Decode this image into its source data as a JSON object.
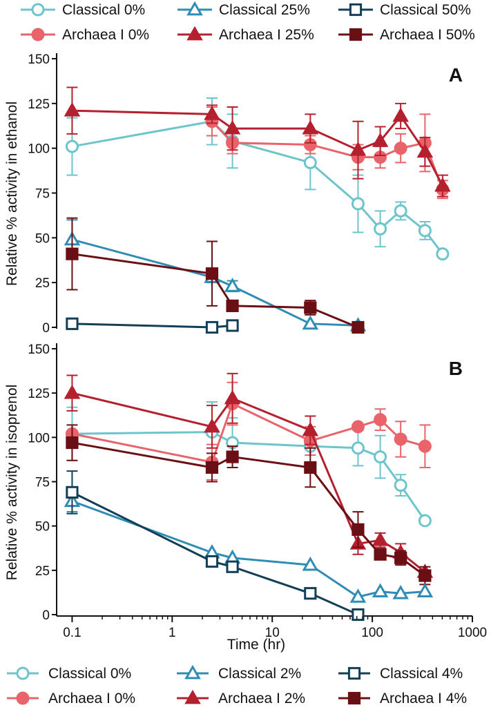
{
  "colors": {
    "classical_0": "#6cc5cb",
    "classical_mid": "#2f8db5",
    "classical_hi": "#123f57",
    "archaea_0": "#e8646a",
    "archaea_mid": "#b5202e",
    "archaea_hi": "#6a0f14",
    "axis": "#111111"
  },
  "x_axis": {
    "title": "Time (hr)",
    "ticks": [
      0.1,
      1,
      10,
      100,
      1000
    ],
    "tick_labels": [
      "0.1",
      "1",
      "10",
      "100",
      "1000"
    ]
  },
  "top_legend": [
    {
      "label": "Classical 0%",
      "marker": "circle",
      "filled": false,
      "color_key": "classical_0"
    },
    {
      "label": "Classical 25%",
      "marker": "triangle",
      "filled": false,
      "color_key": "classical_mid"
    },
    {
      "label": "Classical 50%",
      "marker": "square",
      "filled": false,
      "color_key": "classical_hi"
    },
    {
      "label": "Archaea I 0%",
      "marker": "circle",
      "filled": true,
      "color_key": "archaea_0"
    },
    {
      "label": "Archaea I 25%",
      "marker": "triangle",
      "filled": true,
      "color_key": "archaea_mid"
    },
    {
      "label": "Archaea I 50%",
      "marker": "square",
      "filled": true,
      "color_key": "archaea_hi"
    }
  ],
  "bottom_legend": [
    {
      "label": "Classical 0%",
      "marker": "circle",
      "filled": false,
      "color_key": "classical_0"
    },
    {
      "label": "Classical 2%",
      "marker": "triangle",
      "filled": false,
      "color_key": "classical_mid"
    },
    {
      "label": "Classical 4%",
      "marker": "square",
      "filled": false,
      "color_key": "classical_hi"
    },
    {
      "label": "Archaea I 0%",
      "marker": "circle",
      "filled": true,
      "color_key": "archaea_0"
    },
    {
      "label": "Archaea I 2%",
      "marker": "triangle",
      "filled": true,
      "color_key": "archaea_mid"
    },
    {
      "label": "Archaea I 4%",
      "marker": "square",
      "filled": true,
      "color_key": "archaea_hi"
    }
  ],
  "chart_data": [
    {
      "type": "line",
      "panel": "A",
      "title": "",
      "xlabel": "",
      "ylabel": "Relative % activity in ethanol",
      "xscale": "log",
      "xlim": [
        0.07,
        1000
      ],
      "ylim": [
        0,
        150
      ],
      "yticks": [
        0,
        25,
        50,
        75,
        100,
        125,
        150
      ],
      "series": [
        {
          "name": "Classical 0%",
          "marker": "circle",
          "filled": false,
          "color_key": "classical_0",
          "x": [
            0.1,
            2.5,
            4,
            24,
            72,
            120,
            192,
            336,
            504
          ],
          "y": [
            101,
            115,
            104,
            92,
            69,
            55,
            65,
            54,
            41
          ],
          "err": [
            16,
            13,
            15,
            15,
            16,
            10,
            5,
            5,
            0
          ]
        },
        {
          "name": "Archaea I 0%",
          "marker": "circle",
          "filled": true,
          "color_key": "archaea_0",
          "x": [
            2.5,
            4,
            24,
            72,
            120,
            192,
            336,
            504
          ],
          "y": [
            115,
            103,
            102,
            95,
            95,
            100,
            103,
            77
          ],
          "err": [
            8,
            6,
            5,
            7,
            6,
            8,
            16,
            5
          ]
        },
        {
          "name": "Archaea I 25%",
          "marker": "triangle",
          "filled": true,
          "color_key": "archaea_mid",
          "x": [
            0.1,
            2.5,
            4,
            24,
            72,
            120,
            192,
            336,
            504
          ],
          "y": [
            121,
            119,
            111,
            111,
            99,
            104,
            118,
            98,
            79
          ],
          "err": [
            13,
            5,
            12,
            8,
            16,
            8,
            7,
            8,
            6
          ]
        },
        {
          "name": "Classical 25%",
          "marker": "triangle",
          "filled": false,
          "color_key": "classical_mid",
          "x": [
            0.1,
            2.5,
            4,
            24,
            72
          ],
          "y": [
            49,
            28,
            23,
            2,
            1
          ],
          "err": [
            11,
            3,
            3,
            0,
            0
          ]
        },
        {
          "name": "Archaea I 50%",
          "marker": "square",
          "filled": true,
          "color_key": "archaea_hi",
          "x": [
            0.1,
            2.5,
            4,
            24,
            72
          ],
          "y": [
            41,
            30,
            12,
            11,
            0
          ],
          "err": [
            20,
            18,
            0,
            4,
            0
          ]
        },
        {
          "name": "Classical 50%",
          "marker": "square",
          "filled": false,
          "color_key": "classical_hi",
          "x": [
            0.1,
            2.5,
            4
          ],
          "y": [
            2,
            0,
            1
          ],
          "err": [
            0,
            0,
            0
          ]
        }
      ]
    },
    {
      "type": "line",
      "panel": "B",
      "title": "",
      "xlabel": "Time (hr)",
      "ylabel": "Relative % activity in isoprenol",
      "xscale": "log",
      "xlim": [
        0.07,
        1000
      ],
      "ylim": [
        0,
        150
      ],
      "yticks": [
        0,
        25,
        50,
        75,
        100,
        125,
        150
      ],
      "series": [
        {
          "name": "Classical 0%",
          "marker": "circle",
          "filled": false,
          "color_key": "classical_0",
          "x": [
            0.1,
            2.5,
            4,
            24,
            72,
            120,
            192,
            336
          ],
          "y": [
            102,
            103,
            97,
            95,
            94,
            89,
            73,
            53
          ],
          "err": [
            15,
            17,
            14,
            0,
            10,
            12,
            6,
            0
          ]
        },
        {
          "name": "Archaea I 0%",
          "marker": "circle",
          "filled": true,
          "color_key": "archaea_0",
          "x": [
            0.1,
            2.5,
            4,
            24,
            72,
            120,
            192,
            336
          ],
          "y": [
            102,
            86,
            119,
            98,
            106,
            110,
            99,
            95
          ],
          "err": [
            0,
            10,
            12,
            8,
            0,
            6,
            10,
            12
          ]
        },
        {
          "name": "Archaea I 2%",
          "marker": "triangle",
          "filled": true,
          "color_key": "archaea_mid",
          "x": [
            0.1,
            2.5,
            4,
            24,
            72,
            120,
            192,
            336
          ],
          "y": [
            125,
            106,
            122,
            104,
            40,
            42,
            35,
            24
          ],
          "err": [
            10,
            12,
            14,
            8,
            6,
            4,
            5,
            0
          ]
        },
        {
          "name": "Archaea I 4%",
          "marker": "square",
          "filled": true,
          "color_key": "archaea_hi",
          "x": [
            0.1,
            2.5,
            4,
            24,
            72,
            120,
            192,
            336
          ],
          "y": [
            97,
            83,
            89,
            83,
            48,
            34,
            32,
            22
          ],
          "err": [
            10,
            8,
            6,
            11,
            10,
            3,
            4,
            5
          ]
        },
        {
          "name": "Classical 2%",
          "marker": "triangle",
          "filled": false,
          "color_key": "classical_mid",
          "x": [
            0.1,
            2.5,
            4,
            24,
            72,
            120,
            192,
            336
          ],
          "y": [
            64,
            35,
            32,
            28,
            10,
            13,
            12,
            13
          ],
          "err": [
            6,
            0,
            0,
            0,
            0,
            0,
            0,
            0
          ]
        },
        {
          "name": "Classical 4%",
          "marker": "square",
          "filled": false,
          "color_key": "classical_hi",
          "x": [
            0.1,
            2.5,
            4,
            24,
            72
          ],
          "y": [
            69,
            30,
            27,
            12,
            0
          ],
          "err": [
            12,
            0,
            0,
            0,
            0
          ]
        }
      ]
    }
  ]
}
